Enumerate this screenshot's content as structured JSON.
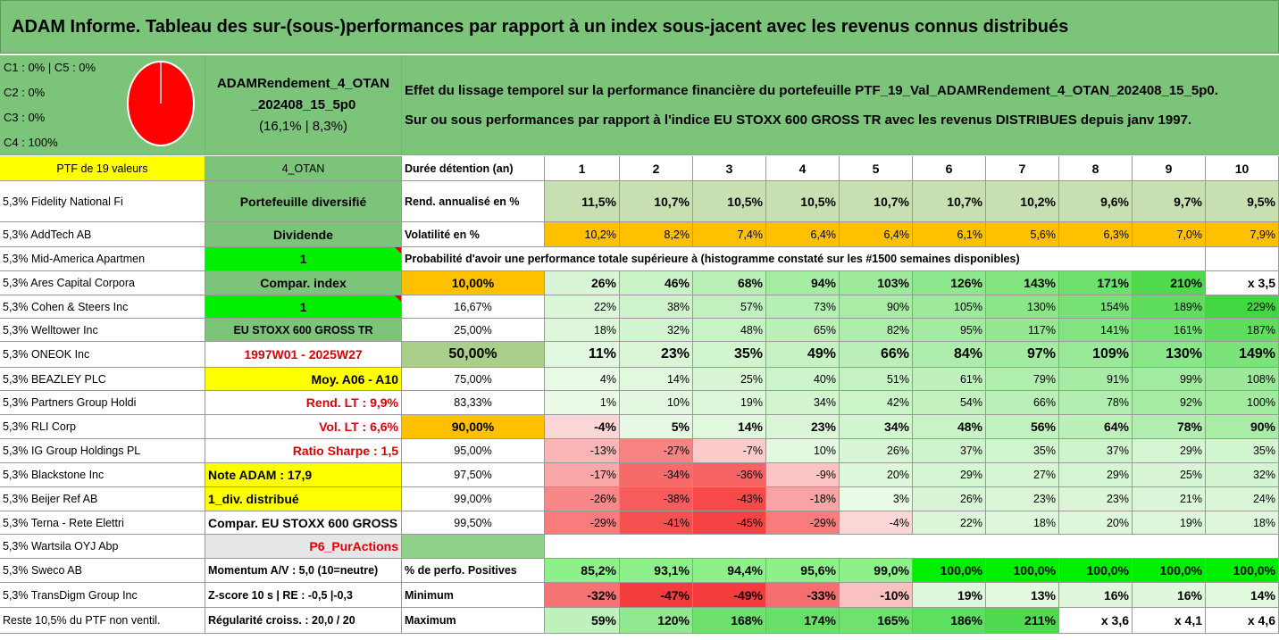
{
  "title": "ADAM Informe. Tableau des sur-(sous-)performances par rapport à un index sous-jacent avec les revenus connus distribués",
  "composition": {
    "lines": [
      "C1 : 0% | C5 : 0%",
      "C2 : 0%",
      "C3 : 0%",
      "C4 : 100%"
    ],
    "pie_color": "#ff0000",
    "pie_share_c4": 1.0
  },
  "fund": {
    "line1": "ADAMRendement_4_OTAN",
    "line2": "_202408_15_5p0",
    "line3": "(16,1% | 8,3%)"
  },
  "description": {
    "line1": "Effet du lissage temporel sur la performance financière du portefeuille PTF_19_Val_ADAMRendement_4_OTAN_202408_15_5p0.",
    "line2": "Sur ou sous performances par rapport à l'indice EU STOXX 600 GROSS TR avec les revenus DISTRIBUES depuis janv 1997."
  },
  "header": {
    "ptf": "PTF de 19 valeurs",
    "code": "4_OTAN",
    "duration_label": "Durée détention (an)",
    "years": [
      "1",
      "2",
      "3",
      "4",
      "5",
      "6",
      "7",
      "8",
      "9",
      "10"
    ]
  },
  "holdings": [
    "5,3% Fidelity National Fi",
    "5,3% AddTech AB",
    "5,3% Mid-America Apartmen",
    "5,3% Ares Capital Corpora",
    "5,3% Cohen & Steers Inc",
    "5,3% Welltower Inc",
    "5,3% ONEOK Inc",
    "5,3% BEAZLEY PLC",
    "5,3% Partners Group Holdi",
    "5,3% RLI Corp",
    "5,3% IG Group Holdings PL",
    "5,3% Blackstone Inc",
    "5,3% Beijer Ref AB",
    "5,3% Terna - Rete Elettri",
    "5,3% Wartsila OYJ Abp",
    "5,3% Sweco AB",
    "5,3% TransDigm Group Inc",
    "Reste 10,5% du PTF non ventil."
  ],
  "info": [
    "Portefeuille diversifié",
    "Dividende",
    "1",
    "Compar. index",
    "1",
    "EU STOXX 600 GROSS TR",
    "1997W01 - 2025W27",
    "Moy. A06 - A10",
    "Rend. LT : 9,9%",
    "Vol. LT : 6,6%",
    "Ratio Sharpe : 1,5",
    "Note ADAM : 17,9",
    "1_div. distribué",
    "Compar. EU STOXX 600 GROSS TR",
    "P6_PurActions",
    "Momentum A/V : 5,0 (10=neutre)",
    "Z-score 10 s | RE : -0,5 |-0,3",
    "Régularité croiss. : 20,0 / 20"
  ],
  "rend": {
    "label": "Rend. annualisé en %",
    "values": [
      "11,5%",
      "10,7%",
      "10,5%",
      "10,5%",
      "10,7%",
      "10,7%",
      "10,2%",
      "9,6%",
      "9,7%",
      "9,5%"
    ]
  },
  "vol": {
    "label": "Volatilité en %",
    "values": [
      "10,2%",
      "8,2%",
      "7,4%",
      "6,4%",
      "6,4%",
      "6,1%",
      "5,6%",
      "6,3%",
      "7,0%",
      "7,9%"
    ]
  },
  "prob_caption": "Probabilité d'avoir une performance totale supérieure à (histogramme constaté sur les #1500 semaines disponibles)",
  "prob": [
    {
      "label": "10,00%",
      "values": [
        "26%",
        "46%",
        "68%",
        "94%",
        "103%",
        "126%",
        "143%",
        "171%",
        "210%",
        "x 3,5"
      ]
    },
    {
      "label": "16,67%",
      "values": [
        "22%",
        "38%",
        "57%",
        "73%",
        "90%",
        "105%",
        "130%",
        "154%",
        "189%",
        "229%"
      ]
    },
    {
      "label": "25,00%",
      "values": [
        "18%",
        "32%",
        "48%",
        "65%",
        "82%",
        "95%",
        "117%",
        "141%",
        "161%",
        "187%"
      ]
    },
    {
      "label": "50,00%",
      "values": [
        "11%",
        "23%",
        "35%",
        "49%",
        "66%",
        "84%",
        "97%",
        "109%",
        "130%",
        "149%"
      ]
    },
    {
      "label": "75,00%",
      "values": [
        "4%",
        "14%",
        "25%",
        "40%",
        "51%",
        "61%",
        "79%",
        "91%",
        "99%",
        "108%"
      ]
    },
    {
      "label": "83,33%",
      "values": [
        "1%",
        "10%",
        "19%",
        "34%",
        "42%",
        "54%",
        "66%",
        "78%",
        "92%",
        "100%"
      ]
    },
    {
      "label": "90,00%",
      "values": [
        "-4%",
        "5%",
        "14%",
        "23%",
        "34%",
        "48%",
        "56%",
        "64%",
        "78%",
        "90%"
      ]
    },
    {
      "label": "95,00%",
      "values": [
        "-13%",
        "-27%",
        "-7%",
        "10%",
        "26%",
        "37%",
        "35%",
        "37%",
        "29%",
        "35%"
      ]
    },
    {
      "label": "97,50%",
      "values": [
        "-17%",
        "-34%",
        "-36%",
        "-9%",
        "20%",
        "29%",
        "27%",
        "29%",
        "25%",
        "32%"
      ]
    },
    {
      "label": "99,00%",
      "values": [
        "-26%",
        "-38%",
        "-43%",
        "-18%",
        "3%",
        "26%",
        "23%",
        "23%",
        "21%",
        "24%"
      ]
    },
    {
      "label": "99,50%",
      "values": [
        "-29%",
        "-41%",
        "-45%",
        "-29%",
        "-4%",
        "22%",
        "18%",
        "20%",
        "19%",
        "18%"
      ]
    }
  ],
  "positives": {
    "label": "% de perfo. Positives",
    "values": [
      "85,2%",
      "93,1%",
      "94,4%",
      "95,6%",
      "99,0%",
      "100,0%",
      "100,0%",
      "100,0%",
      "100,0%",
      "100,0%"
    ]
  },
  "minimum": {
    "label": "Minimum",
    "values": [
      "-32%",
      "-47%",
      "-49%",
      "-33%",
      "-10%",
      "19%",
      "13%",
      "16%",
      "16%",
      "14%"
    ]
  },
  "maximum": {
    "label": "Maximum",
    "values": [
      "59%",
      "120%",
      "168%",
      "174%",
      "165%",
      "186%",
      "211%",
      "x 3,6",
      "x 4,1",
      "x 4,6"
    ]
  },
  "colors": {
    "title_green": "#7cc47a",
    "yellow": "#ffff00",
    "bright_green": "#00ee00",
    "orange": "#ffc000",
    "red_text": "#e00000"
  }
}
